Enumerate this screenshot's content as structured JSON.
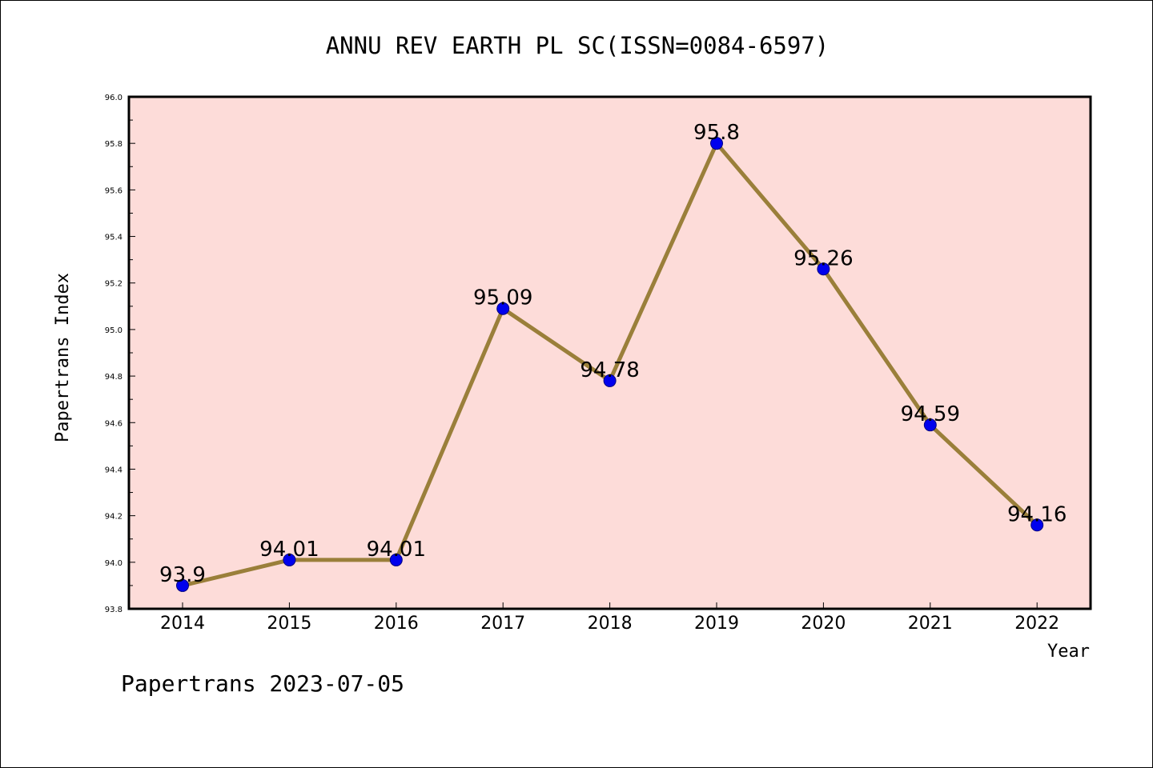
{
  "chart_data": {
    "type": "line",
    "title": "ANNU REV EARTH PL SC(ISSN=0084-6597)",
    "xlabel": "Year",
    "ylabel": "Papertrans Index",
    "categories": [
      "2014",
      "2015",
      "2016",
      "2017",
      "2018",
      "2019",
      "2020",
      "2021",
      "2022"
    ],
    "values": [
      93.9,
      94.01,
      94.01,
      95.09,
      94.78,
      95.8,
      95.26,
      94.59,
      94.16
    ],
    "data_labels": [
      "93.9",
      "94.01",
      "94.01",
      "95.09",
      "94.78",
      "95.8",
      "95.26",
      "94.59",
      "94.16"
    ],
    "ylim": [
      93.8,
      96.0
    ],
    "yticks": [
      "93.8",
      "94.0",
      "94.2",
      "94.4",
      "94.6",
      "94.8",
      "95.0",
      "95.2",
      "95.4",
      "95.6",
      "95.8",
      "96.0"
    ],
    "grid": false,
    "legend": "none",
    "colors": {
      "plot_background": "#fddcd9",
      "line": "#9a7f3a",
      "marker_fill": "#0000ee",
      "marker_stroke": "#000080"
    }
  },
  "footer": {
    "text": "Papertrans 2023-07-05"
  }
}
